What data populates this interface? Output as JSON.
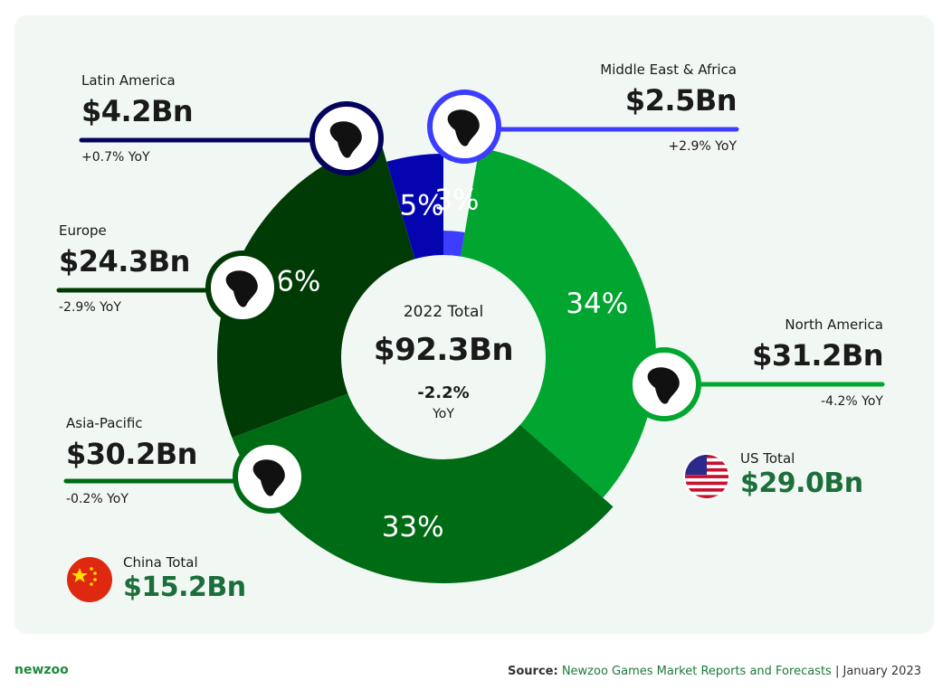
{
  "chart_data": {
    "type": "pie",
    "subtype": "donut",
    "center": {
      "title": "2022 Total",
      "value": "$92.3Bn",
      "yoy": "-2.2%",
      "yoy_unit": "YoY"
    },
    "slices": [
      {
        "region": "Middle East & Africa",
        "percent_label": "3%",
        "share": 2.7,
        "value_label": "$2.5Bn",
        "value": 2.5,
        "yoy": "+2.9% YoY",
        "color": "#3d3dff",
        "icon": "africa-map-icon",
        "line_color": "#3d3dff"
      },
      {
        "region": "North America",
        "percent_label": "34%",
        "share": 33.8,
        "value_label": "$31.2Bn",
        "value": 31.2,
        "yoy": "-4.2% YoY",
        "color": "#00a62f",
        "icon": "north-america-map-icon",
        "line_color": "#00a62f"
      },
      {
        "region": "Asia-Pacific",
        "percent_label": "33%",
        "share": 32.7,
        "value_label": "$30.2Bn",
        "value": 30.2,
        "yoy": "-0.2% YoY",
        "color": "#006b15",
        "icon": "asia-pacific-map-icon",
        "line_color": "#006b15"
      },
      {
        "region": "Europe",
        "percent_label": "26%",
        "share": 26.3,
        "value_label": "$24.3Bn",
        "value": 24.3,
        "yoy": "-2.9% YoY",
        "color": "#003b05",
        "icon": "europe-map-icon",
        "line_color": "#003b05"
      },
      {
        "region": "Latin America",
        "percent_label": "5%",
        "share": 4.5,
        "value_label": "$4.2Bn",
        "value": 4.2,
        "yoy": "+0.7% YoY",
        "color": "#0505b0",
        "icon": "latin-america-map-icon",
        "line_color": "#03035e"
      }
    ],
    "countries": [
      {
        "name": "US Total",
        "value": "$29.0Bn",
        "icon": "us-flag-icon"
      },
      {
        "name": "China Total",
        "value": "$15.2Bn",
        "icon": "china-flag-icon"
      }
    ]
  },
  "footer": {
    "brand": "newzoo",
    "source_label": "Source:",
    "source_text": "Newzoo Games Market Reports and Forecasts",
    "source_date": "| January 2023"
  }
}
